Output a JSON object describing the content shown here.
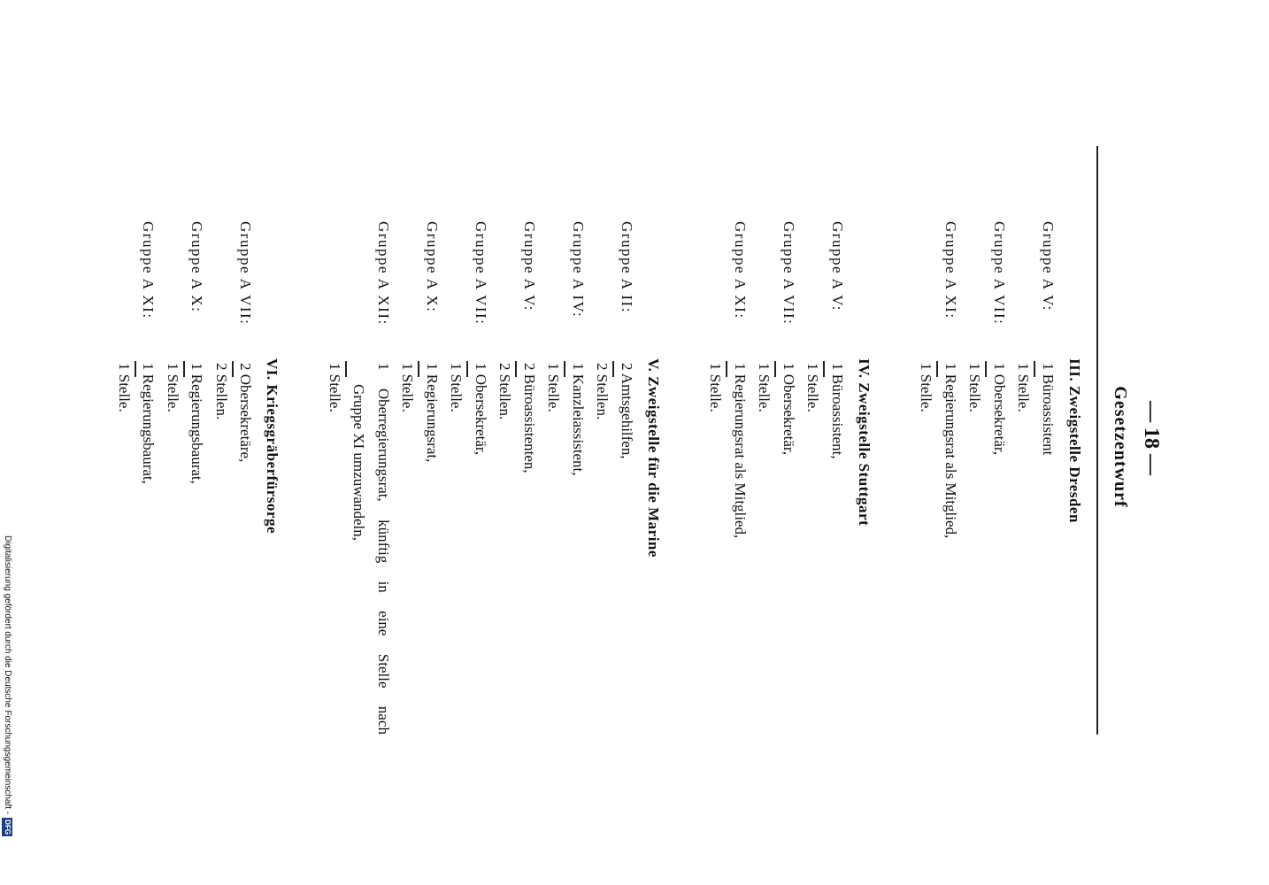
{
  "header": {
    "page_number": "— 18 —",
    "title": "Gesetzentwurf"
  },
  "sections": [
    {
      "heading": "III. Zweigstelle Dresden",
      "entries": [
        {
          "group": "Gruppe A V:",
          "position": [
            "1 Büroassistent"
          ],
          "posts": "1 Stelle."
        },
        {
          "group": "Gruppe A VII:",
          "position": [
            "1 Obersekretär,"
          ],
          "posts": "1 Stelle."
        },
        {
          "group": "Gruppe A XI:",
          "position": [
            "1 Regierungsrat als Mitglied,"
          ],
          "posts": "1 Stelle."
        }
      ]
    },
    {
      "heading": "IV. Zweigstelle Stuttgart",
      "entries": [
        {
          "group": "Gruppe A V:",
          "position": [
            "1 Büroassistent,"
          ],
          "posts": "1 Stelle."
        },
        {
          "group": "Gruppe A VII:",
          "position": [
            "1 Obersekretär,"
          ],
          "posts": "1 Stelle."
        },
        {
          "group": "Gruppe A XI:",
          "position": [
            "1 Regierungsrat als Mitglied,"
          ],
          "posts": "1 Stelle."
        }
      ]
    },
    {
      "heading": "V. Zweigstelle für die Marine",
      "entries": [
        {
          "group": "Gruppe A II:",
          "position": [
            "2 Amtsgehilfen,"
          ],
          "posts": "2 Stellen."
        },
        {
          "group": "Gruppe A IV:",
          "position": [
            "1 Kanzleiassistent,"
          ],
          "posts": "1 Stelle."
        },
        {
          "group": "Gruppe A V:",
          "position": [
            "2 Büroassistenten,"
          ],
          "posts": "2 Stellen."
        },
        {
          "group": "Gruppe A VII:",
          "position": [
            "1 Obersekretär,"
          ],
          "posts": "1 Stelle."
        },
        {
          "group": "Gruppe A X:",
          "position": [
            "1 Regierungsrat,"
          ],
          "posts": "1 Stelle."
        },
        {
          "group": "Gruppe A XII:",
          "position": [
            "1 Oberregierungsrat, künftig in eine Stelle nach",
            "Gruppe XI umzuwandeln,"
          ],
          "posts": "1 Stelle."
        }
      ]
    },
    {
      "heading": "VI. Kriegsgräberfürsorge",
      "entries": [
        {
          "group": "Gruppe A VII:",
          "position": [
            "2 Obersekretäre,"
          ],
          "posts": "2 Stellen."
        },
        {
          "group": "Gruppe A X:",
          "position": [
            "1 Regierungsbaurat,"
          ],
          "posts": "1 Stelle."
        },
        {
          "group": "Gruppe A XI:",
          "position": [
            "1 Regierungsbaurat,"
          ],
          "posts": "1 Stelle."
        }
      ]
    }
  ],
  "footer": {
    "text": "Digitalisierung gefördert durch die Deutsche Forschungsgemeinschaft -",
    "logo": "DFG"
  }
}
